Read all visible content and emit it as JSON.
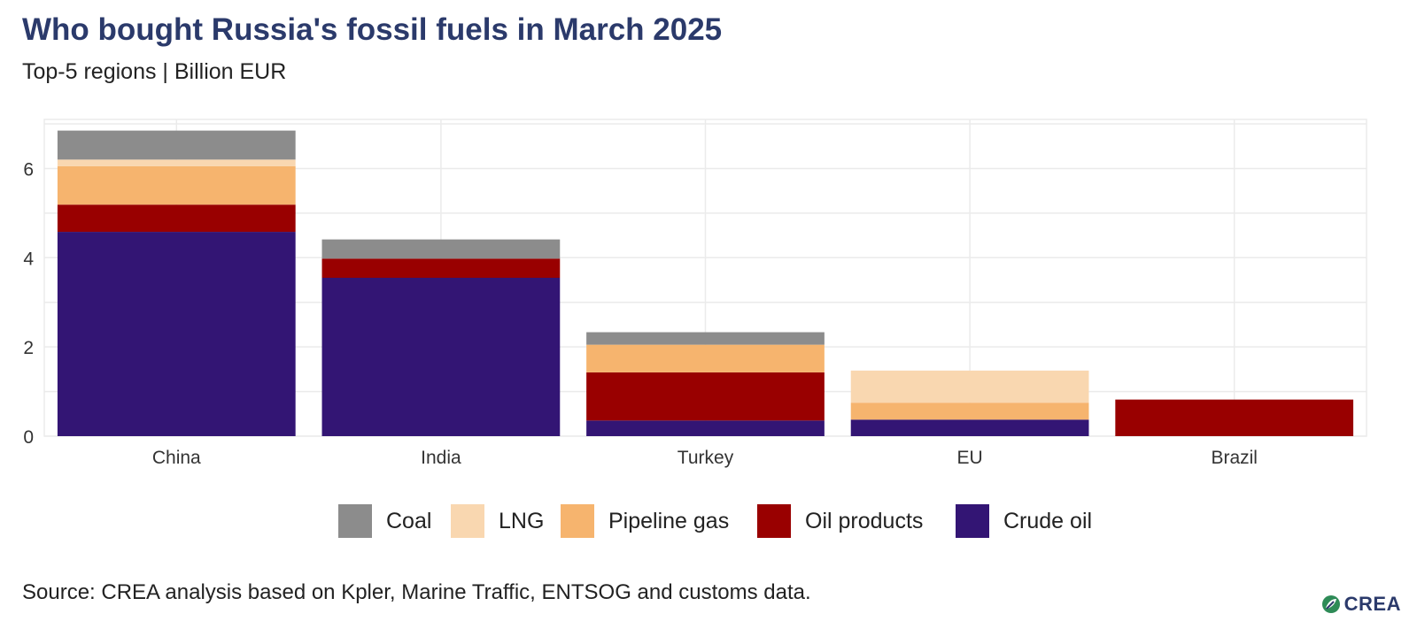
{
  "header": {
    "title": "Who bought Russia's fossil fuels in March 2025",
    "subtitle": "Top-5 regions | Billion EUR"
  },
  "chart_data": {
    "type": "bar",
    "stacked": true,
    "title": "Who bought Russia's fossil fuels in March 2025",
    "subtitle": "Top-5 regions | Billion EUR",
    "xlabel": "",
    "ylabel": "",
    "categories": [
      "China",
      "India",
      "Turkey",
      "EU",
      "Brazil"
    ],
    "ylim": [
      0,
      7.1
    ],
    "yticks": [
      0,
      2,
      4,
      6
    ],
    "grid": true,
    "legend_position": "bottom",
    "series": [
      {
        "name": "Crude oil",
        "color": "#331574",
        "values": [
          4.58,
          3.55,
          0.35,
          0.37,
          0.0
        ]
      },
      {
        "name": "Oil products",
        "color": "#990000",
        "values": [
          0.61,
          0.43,
          1.08,
          0.0,
          0.82
        ]
      },
      {
        "name": "Pipeline gas",
        "color": "#f6b46e",
        "values": [
          0.86,
          0.0,
          0.62,
          0.38,
          0.0
        ]
      },
      {
        "name": "LNG",
        "color": "#f9d7b0",
        "values": [
          0.15,
          0.0,
          0.0,
          0.72,
          0.0
        ]
      },
      {
        "name": "Coal",
        "color": "#8c8c8c",
        "values": [
          0.65,
          0.43,
          0.28,
          0.0,
          0.0
        ]
      }
    ]
  },
  "legend": {
    "items": [
      {
        "name": "Coal",
        "color": "#8c8c8c"
      },
      {
        "name": "LNG",
        "color": "#f9d7b0"
      },
      {
        "name": "Pipeline gas",
        "color": "#f6b46e"
      },
      {
        "name": "Oil products",
        "color": "#990000"
      },
      {
        "name": "Crude oil",
        "color": "#331574"
      }
    ]
  },
  "footer": {
    "source": "Source: CREA analysis based on Kpler, Marine Traffic, ENTSOG and customs data.",
    "logo_text": "CREA",
    "logo_icon": "crea-leaf-icon"
  }
}
